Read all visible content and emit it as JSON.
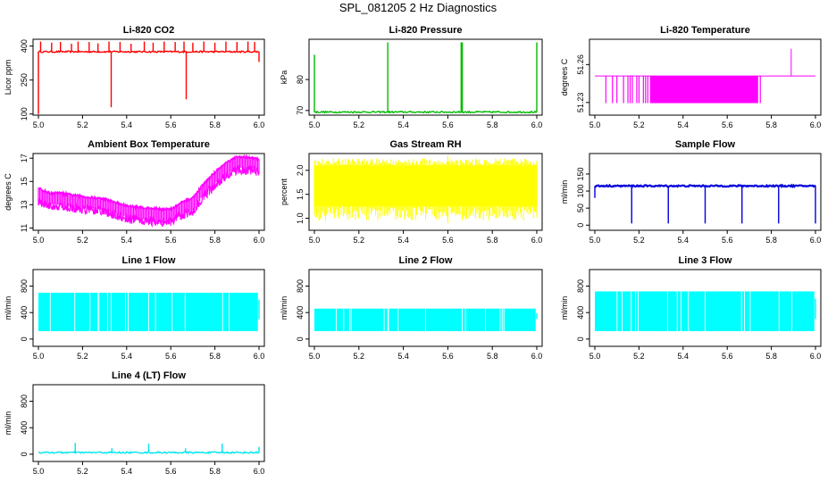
{
  "figure_title": "SPL_081205  2 Hz Diagnostics",
  "chart_data": [
    {
      "id": "co2",
      "type": "line",
      "title": "Li-820 CO2",
      "xlabel": "",
      "ylabel": "Licor ppm",
      "xlim": [
        5.0,
        6.0
      ],
      "ylim": [
        95,
        430
      ],
      "x_ticks": [
        "5.0",
        "5.2",
        "5.4",
        "5.6",
        "5.8",
        "6.0"
      ],
      "y_ticks": [
        "100",
        "250",
        "400"
      ],
      "color": "#ff0000",
      "series": [
        {
          "name": "baseline",
          "values": [
            375
          ]
        },
        {
          "name": "spikes_up",
          "x": [
            5.01,
            5.06,
            5.1,
            5.15,
            5.18,
            5.23,
            5.27,
            5.32,
            5.37,
            5.42,
            5.48,
            5.52,
            5.57,
            5.62,
            5.66,
            5.7,
            5.75,
            5.8,
            5.85,
            5.9,
            5.95,
            5.98
          ],
          "values": [
            420,
            415,
            418,
            410,
            420,
            418,
            412,
            420,
            418,
            410,
            420,
            415,
            420,
            418,
            420,
            415,
            420,
            415,
            420,
            418,
            420,
            418
          ]
        },
        {
          "name": "spikes_down",
          "x": [
            5.0,
            5.33,
            5.67,
            6.0
          ],
          "values": [
            100,
            130,
            165,
            330
          ]
        }
      ]
    },
    {
      "id": "pressure",
      "type": "line",
      "title": "Li-820 Pressure",
      "xlabel": "",
      "ylabel": "kPa",
      "xlim": [
        5.0,
        6.0
      ],
      "ylim": [
        68.5,
        93
      ],
      "x_ticks": [
        "5.0",
        "5.2",
        "5.4",
        "5.6",
        "5.8",
        "6.0"
      ],
      "y_ticks": [
        "70",
        "80"
      ],
      "color": "#00bb00",
      "series": [
        {
          "name": "baseline",
          "values": [
            69.5
          ]
        },
        {
          "name": "spikes_up",
          "x": [
            5.0,
            5.33,
            5.66,
            5.665,
            6.0
          ],
          "values": [
            88,
            92,
            92,
            92,
            92
          ]
        }
      ]
    },
    {
      "id": "temperature",
      "type": "line",
      "title": "Li-820 Temperature",
      "xlabel": "",
      "ylabel": "degrees C",
      "xlim": [
        5.0,
        6.0
      ],
      "ylim": [
        51.22,
        51.28
      ],
      "x_ticks": [
        "5.0",
        "5.2",
        "5.4",
        "5.6",
        "5.8",
        "6.0"
      ],
      "y_ticks": [
        "51.23",
        "51.26"
      ],
      "color": "#ff00ff",
      "series": [
        {
          "name": "level",
          "values": [
            51.251
          ]
        },
        {
          "name": "dips_to",
          "values": [
            51.2295
          ]
        },
        {
          "name": "spike",
          "x": [
            5.89
          ],
          "values": [
            51.2725
          ]
        }
      ]
    },
    {
      "id": "ambient",
      "type": "line",
      "title": "Ambient Box Temperature",
      "xlabel": "",
      "ylabel": "degrees C",
      "xlim": [
        5.0,
        6.0
      ],
      "ylim": [
        10.8,
        17.4
      ],
      "x_ticks": [
        "5.0",
        "5.2",
        "5.4",
        "5.6",
        "5.8",
        "6.0"
      ],
      "y_ticks": [
        "11",
        "13",
        "15",
        "17"
      ],
      "color": "#ff00ff",
      "series": [
        {
          "name": "trend",
          "x": [
            5.0,
            5.05,
            5.1,
            5.2,
            5.3,
            5.4,
            5.5,
            5.6,
            5.65,
            5.7,
            5.75,
            5.8,
            5.85,
            5.9,
            5.95,
            6.0
          ],
          "values": [
            14.0,
            13.6,
            13.6,
            13.3,
            13.1,
            12.5,
            12.3,
            12.2,
            12.8,
            13.2,
            14.4,
            15.4,
            16.2,
            16.7,
            16.7,
            16.5
          ]
        }
      ]
    },
    {
      "id": "rh",
      "type": "area",
      "title": "Gas Stream RH",
      "xlabel": "",
      "ylabel": "percent",
      "xlim": [
        5.0,
        6.0
      ],
      "ylim": [
        0.75,
        2.35
      ],
      "x_ticks": [
        "5.0",
        "5.2",
        "5.4",
        "5.6",
        "5.8",
        "6.0"
      ],
      "y_ticks": [
        "1.0",
        "1.5",
        "2.0"
      ],
      "color": "#ffff00",
      "series": [
        {
          "name": "upper",
          "values": [
            2.1
          ]
        },
        {
          "name": "lower",
          "values": [
            1.25
          ]
        },
        {
          "name": "min_dips",
          "values": [
            0.9
          ]
        },
        {
          "name": "max_peaks",
          "values": [
            2.3
          ]
        }
      ]
    },
    {
      "id": "sample_flow",
      "type": "line",
      "title": "Sample Flow",
      "xlabel": "",
      "ylabel": "ml/min",
      "xlim": [
        5.0,
        6.0
      ],
      "ylim": [
        -15,
        210
      ],
      "x_ticks": [
        "5.0",
        "5.2",
        "5.4",
        "5.6",
        "5.8",
        "6.0"
      ],
      "y_ticks": [
        "0",
        "50",
        "100",
        "150"
      ],
      "color": "#0000dd",
      "series": [
        {
          "name": "baseline",
          "values": [
            115
          ]
        },
        {
          "name": "drops",
          "x": [
            5.0,
            5.167,
            5.333,
            5.5,
            5.667,
            5.833,
            6.0
          ],
          "values": [
            80,
            5,
            5,
            5,
            5,
            5,
            5
          ]
        }
      ]
    },
    {
      "id": "line1",
      "type": "area",
      "title": "Line 1 Flow",
      "xlabel": "",
      "ylabel": "ml/min",
      "xlim": [
        5.0,
        6.0
      ],
      "ylim": [
        -110,
        1050
      ],
      "x_ticks": [
        "5.0",
        "5.2",
        "5.4",
        "5.6",
        "5.8",
        "6.0"
      ],
      "y_ticks": [
        "0",
        "400",
        "800"
      ],
      "color": "#00ffff",
      "series": [
        {
          "name": "upper",
          "values": [
            700
          ]
        },
        {
          "name": "lower",
          "values": [
            120
          ]
        },
        {
          "name": "gaps",
          "x": [
            5.165,
            5.33,
            5.5,
            5.665,
            5.835
          ],
          "values": [
            0,
            0,
            0,
            0,
            0
          ]
        }
      ]
    },
    {
      "id": "line2",
      "type": "area",
      "title": "Line 2 Flow",
      "xlabel": "",
      "ylabel": "ml/min",
      "xlim": [
        5.0,
        6.0
      ],
      "ylim": [
        -110,
        1050
      ],
      "x_ticks": [
        "5.0",
        "5.2",
        "5.4",
        "5.6",
        "5.8",
        "6.0"
      ],
      "y_ticks": [
        "0",
        "400",
        "800"
      ],
      "color": "#00ffff",
      "series": [
        {
          "name": "upper",
          "values": [
            460
          ]
        },
        {
          "name": "lower",
          "values": [
            120
          ]
        },
        {
          "name": "gaps",
          "x": [
            5.165,
            5.33,
            5.5,
            5.665,
            5.835
          ],
          "values": [
            0,
            0,
            0,
            0,
            0
          ]
        }
      ]
    },
    {
      "id": "line3",
      "type": "area",
      "title": "Line 3 Flow",
      "xlabel": "",
      "ylabel": "ml/min",
      "xlim": [
        5.0,
        6.0
      ],
      "ylim": [
        -110,
        1050
      ],
      "x_ticks": [
        "5.0",
        "5.2",
        "5.4",
        "5.6",
        "5.8",
        "6.0"
      ],
      "y_ticks": [
        "0",
        "400",
        "800"
      ],
      "color": "#00ffff",
      "series": [
        {
          "name": "upper",
          "values": [
            720
          ]
        },
        {
          "name": "lower",
          "values": [
            120
          ]
        },
        {
          "name": "gaps",
          "x": [
            5.165,
            5.33,
            5.5,
            5.665,
            5.835
          ],
          "values": [
            0,
            0,
            0,
            0,
            0
          ]
        }
      ]
    },
    {
      "id": "line4",
      "type": "line",
      "title": "Line 4 (LT) Flow",
      "xlabel": "",
      "ylabel": "ml/min",
      "xlim": [
        5.0,
        6.0
      ],
      "ylim": [
        -110,
        1050
      ],
      "x_ticks": [
        "5.0",
        "5.2",
        "5.4",
        "5.6",
        "5.8",
        "6.0"
      ],
      "y_ticks": [
        "0",
        "400",
        "800"
      ],
      "color": "#00e5ee",
      "series": [
        {
          "name": "baseline",
          "values": [
            25
          ]
        },
        {
          "name": "spikes",
          "x": [
            5.167,
            5.333,
            5.5,
            5.667,
            5.833,
            6.0
          ],
          "values": [
            170,
            90,
            160,
            90,
            160,
            110
          ]
        }
      ]
    }
  ]
}
